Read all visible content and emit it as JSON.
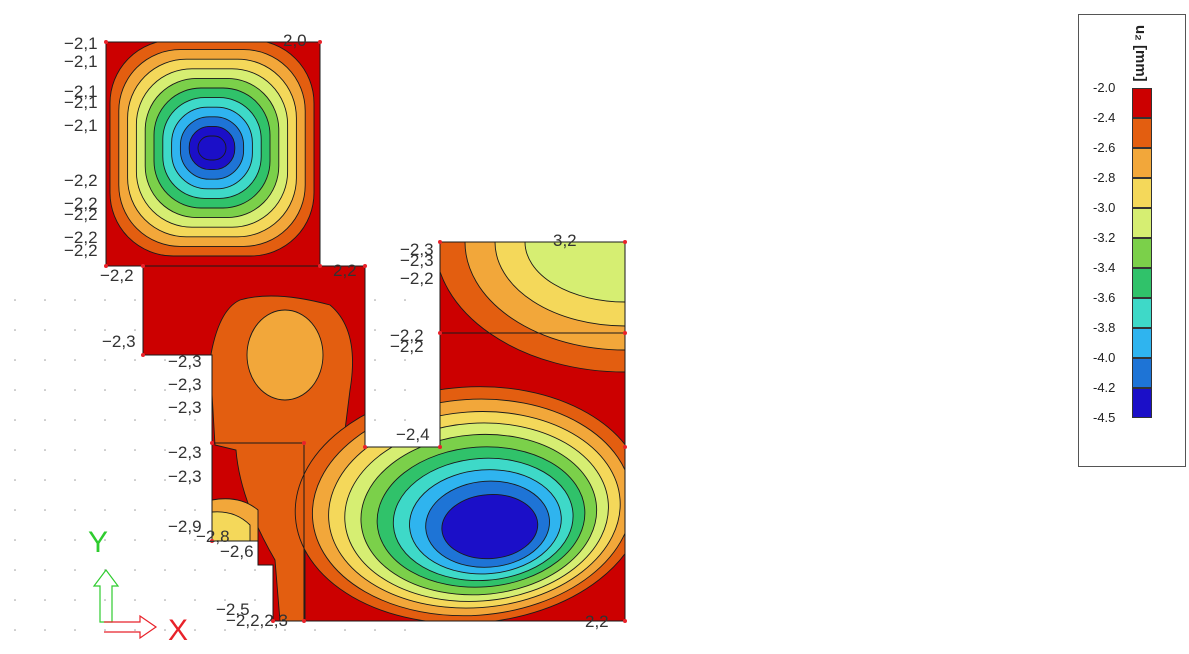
{
  "colors": {
    "levels": [
      "#cc0000",
      "#e35e10",
      "#f2a73a",
      "#f4d85a",
      "#d6ee72",
      "#7bd04a",
      "#30c26a",
      "#3ed9c8",
      "#2fb4ef",
      "#1e74d6",
      "#1b0fc8"
    ],
    "axis_x": "#e8222a",
    "axis_y": "#2ecc2e",
    "contour": "#1a1a1a"
  },
  "legend": {
    "unit": "u₂ [mm]",
    "ticks": [
      "-2.0",
      "-2.4",
      "-2.6",
      "-2.8",
      "-3.0",
      "-3.2",
      "-3.4",
      "-3.6",
      "-3.8",
      "-4.0",
      "-4.2",
      "-4.5"
    ]
  },
  "axes": {
    "x_label": "X",
    "y_label": "Y"
  },
  "plate_labels": [
    {
      "id": "l1",
      "text": "−2,1"
    },
    {
      "id": "l2",
      "text": "−2,1"
    },
    {
      "id": "l3",
      "text": "−2,1"
    },
    {
      "id": "l4",
      "text": "−2,1"
    },
    {
      "id": "l5",
      "text": "−2,1"
    },
    {
      "id": "l6",
      "text": "2,0"
    },
    {
      "id": "l7",
      "text": "−2,2"
    },
    {
      "id": "l8",
      "text": "−2,2"
    },
    {
      "id": "l9",
      "text": "−2,2"
    },
    {
      "id": "l10",
      "text": "−2,2"
    },
    {
      "id": "l11",
      "text": "−2,2"
    },
    {
      "id": "l12",
      "text": "−2,2"
    },
    {
      "id": "l13",
      "text": "2,2"
    },
    {
      "id": "l14",
      "text": "−2,3"
    },
    {
      "id": "l15",
      "text": "−2,3"
    },
    {
      "id": "l16",
      "text": "−2,2"
    },
    {
      "id": "l17",
      "text": "3,2"
    },
    {
      "id": "l18",
      "text": "−2,2"
    },
    {
      "id": "l19",
      "text": "−2,2"
    },
    {
      "id": "l20",
      "text": "−2,3"
    },
    {
      "id": "l21",
      "text": "−2,3"
    },
    {
      "id": "l22",
      "text": "−2,3"
    },
    {
      "id": "l23",
      "text": "−2,3"
    },
    {
      "id": "l24",
      "text": "−2,3"
    },
    {
      "id": "l25",
      "text": "−2,4"
    },
    {
      "id": "l26",
      "text": "−2,3"
    },
    {
      "id": "l27",
      "text": "−2,9"
    },
    {
      "id": "l28",
      "text": "−2,8"
    },
    {
      "id": "l29",
      "text": "−2,6"
    },
    {
      "id": "l30",
      "text": "−2,5"
    },
    {
      "id": "l31",
      "text": "−2,2,2,3"
    },
    {
      "id": "l32",
      "text": "2,2"
    }
  ]
}
